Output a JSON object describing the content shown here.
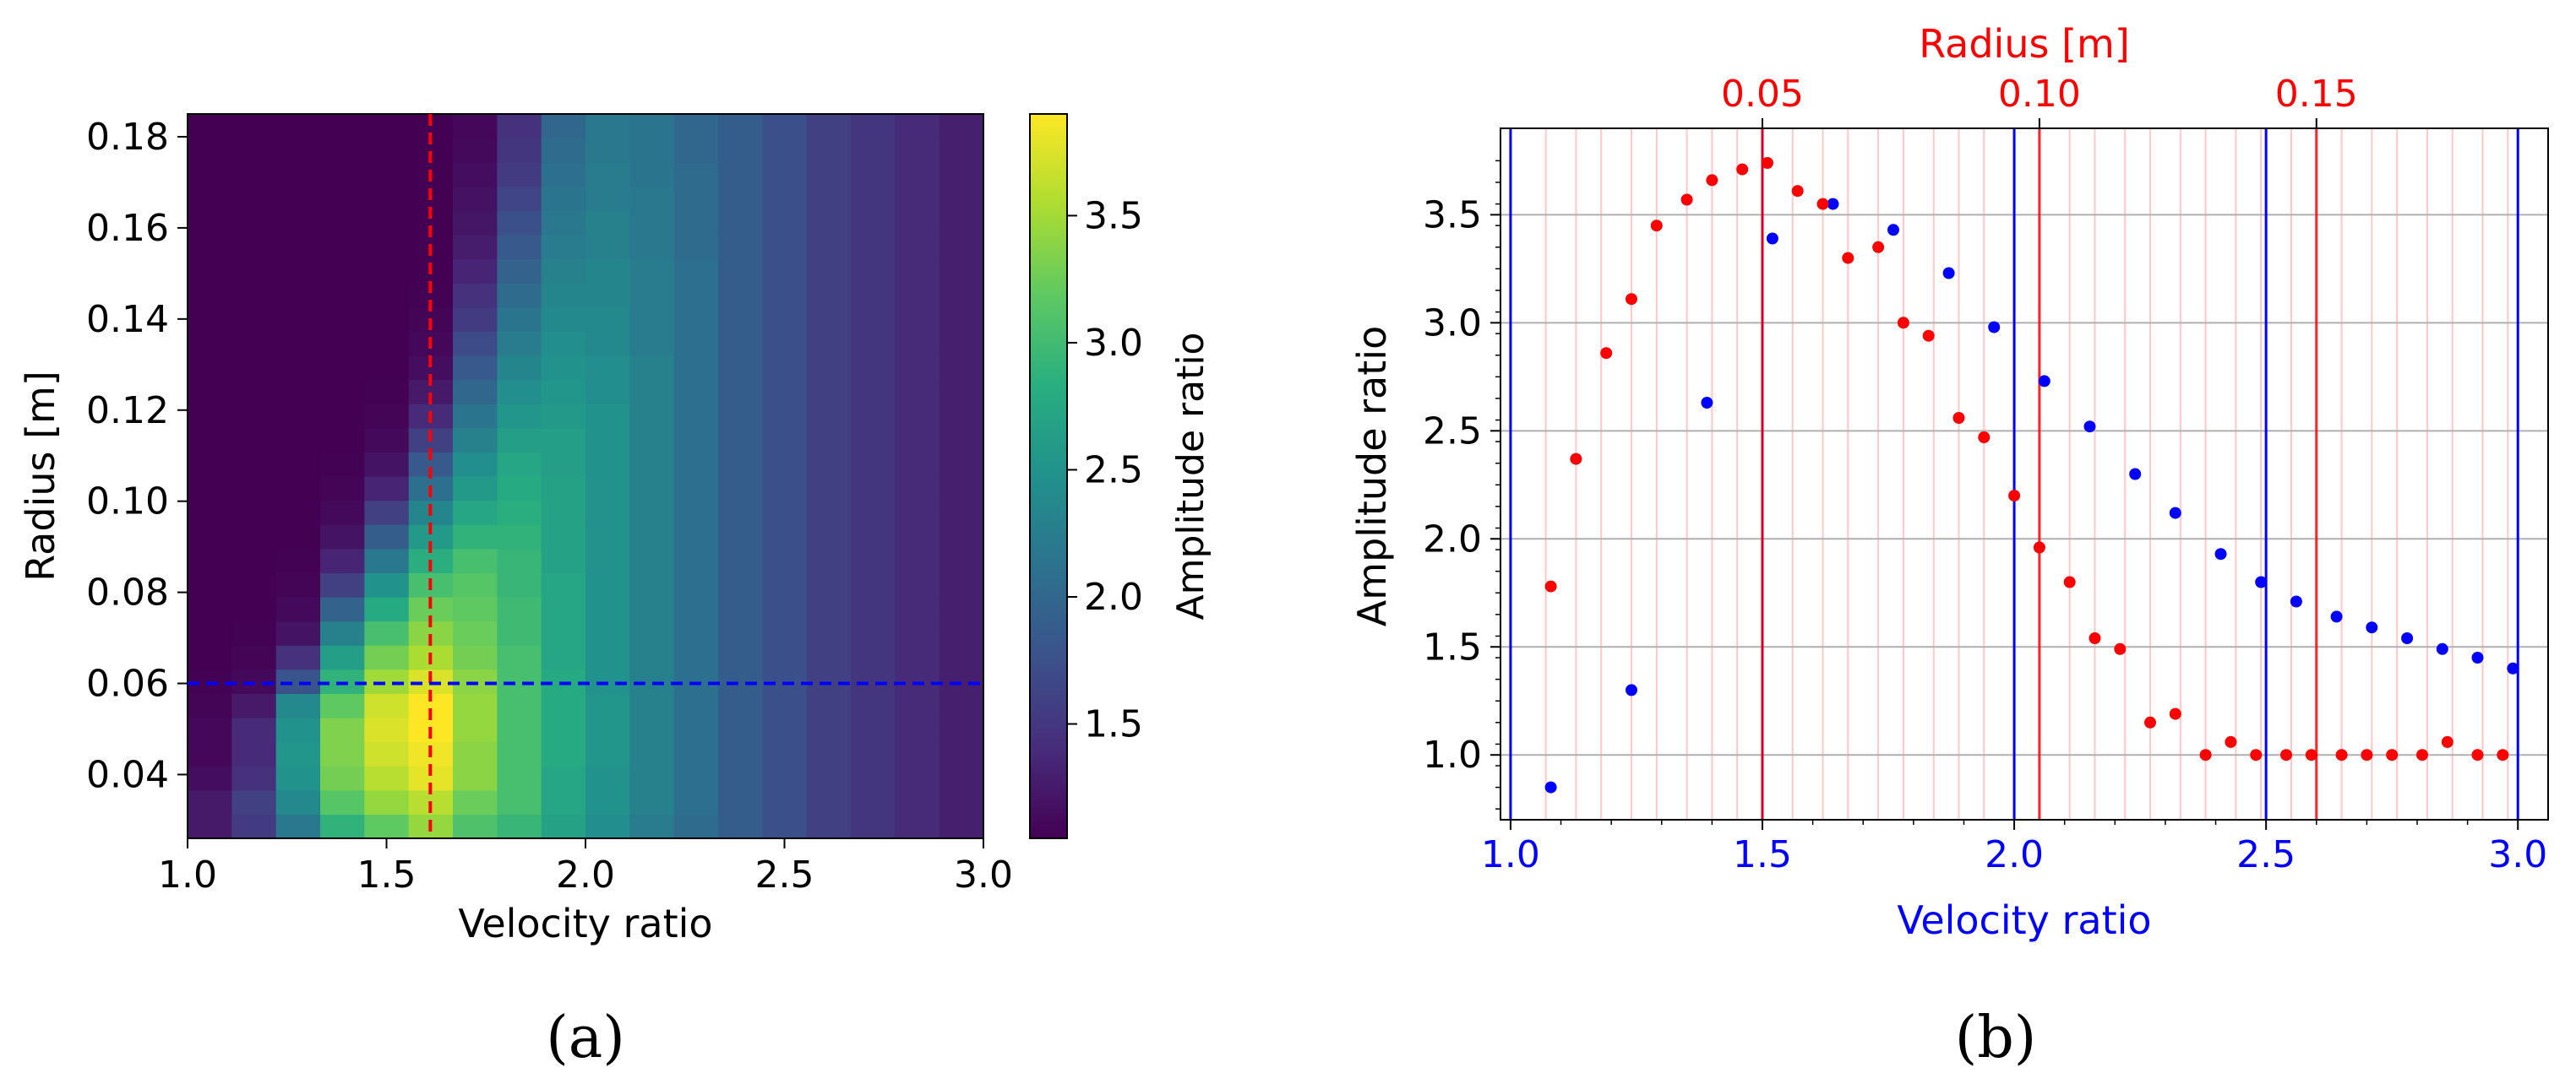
{
  "captions": {
    "a": "(a)",
    "b": "(b)"
  },
  "colors": {
    "blue_series": "#0000ff",
    "red_series": "#ff0000",
    "crosshair_v": "#ff0000",
    "crosshair_h": "#0000ff"
  },
  "chart_data": [
    {
      "panel": "a",
      "type": "heatmap",
      "xlabel": "Velocity ratio",
      "ylabel": "Radius [m]",
      "xlim": [
        1.0,
        3.0
      ],
      "ylim": [
        0.026,
        0.185
      ],
      "xticks": [
        1.0,
        1.5,
        2.0,
        2.5,
        3.0
      ],
      "xtick_labels": [
        "1.0",
        "1.5",
        "2.0",
        "2.5",
        "3.0"
      ],
      "yticks": [
        0.04,
        0.06,
        0.08,
        0.1,
        0.12,
        0.14,
        0.16,
        0.18
      ],
      "ytick_labels": [
        "0.04",
        "0.06",
        "0.08",
        "0.10",
        "0.12",
        "0.14",
        "0.16",
        "0.18"
      ],
      "colorbar": {
        "label": "Amplitude ratio",
        "range": [
          1.05,
          3.9
        ],
        "ticks": [
          1.5,
          2.0,
          2.5,
          3.0,
          3.5
        ],
        "tick_labels": [
          "1.5",
          "2.0",
          "2.5",
          "3.0",
          "3.5"
        ],
        "colormap": "viridis"
      },
      "x_centers": [
        1.056,
        1.167,
        1.278,
        1.389,
        1.5,
        1.611,
        1.722,
        1.833,
        1.944,
        2.056,
        2.167,
        2.278,
        2.389,
        2.5,
        2.611,
        2.722,
        2.833,
        2.944
      ],
      "y_centers": [
        0.031,
        0.036,
        0.041,
        0.047,
        0.052,
        0.057,
        0.062,
        0.068,
        0.073,
        0.078,
        0.083,
        0.088,
        0.094,
        0.099,
        0.104,
        0.109,
        0.114,
        0.12,
        0.125,
        0.13,
        0.135,
        0.14,
        0.146,
        0.151,
        0.156,
        0.161,
        0.166,
        0.172,
        0.177,
        0.182
      ],
      "values": [
        [
          1.25,
          1.55,
          2.2,
          2.9,
          3.2,
          3.45,
          3.1,
          2.95,
          2.7,
          2.45,
          2.25,
          2.05,
          1.9,
          1.75,
          1.6,
          1.5,
          1.4,
          1.3
        ],
        [
          1.25,
          1.6,
          2.4,
          3.15,
          3.45,
          3.6,
          3.25,
          3.05,
          2.75,
          2.5,
          2.3,
          2.1,
          1.9,
          1.75,
          1.6,
          1.5,
          1.4,
          1.3
        ],
        [
          1.15,
          1.45,
          2.5,
          3.3,
          3.6,
          3.8,
          3.4,
          3.05,
          2.75,
          2.5,
          2.3,
          2.1,
          1.9,
          1.75,
          1.6,
          1.5,
          1.4,
          1.3
        ],
        [
          1.1,
          1.4,
          2.55,
          3.35,
          3.7,
          3.85,
          3.4,
          3.05,
          2.8,
          2.55,
          2.3,
          2.1,
          1.9,
          1.75,
          1.6,
          1.5,
          1.4,
          1.3
        ],
        [
          1.1,
          1.4,
          2.5,
          3.35,
          3.75,
          3.9,
          3.45,
          3.05,
          2.8,
          2.55,
          2.3,
          2.1,
          1.9,
          1.75,
          1.6,
          1.5,
          1.4,
          1.3
        ],
        [
          1.08,
          1.25,
          2.4,
          3.2,
          3.7,
          3.9,
          3.45,
          3.05,
          2.8,
          2.55,
          2.3,
          2.1,
          1.9,
          1.75,
          1.6,
          1.5,
          1.4,
          1.3
        ],
        [
          1.06,
          1.12,
          1.8,
          2.9,
          3.5,
          3.75,
          3.4,
          3.05,
          2.8,
          2.5,
          2.3,
          2.1,
          1.9,
          1.75,
          1.6,
          1.5,
          1.4,
          1.3
        ],
        [
          1.05,
          1.08,
          1.45,
          2.65,
          3.3,
          3.55,
          3.3,
          3.05,
          2.75,
          2.5,
          2.3,
          2.1,
          1.9,
          1.75,
          1.6,
          1.5,
          1.4,
          1.3
        ],
        [
          1.05,
          1.06,
          1.2,
          2.3,
          3.05,
          3.4,
          3.25,
          3.0,
          2.75,
          2.5,
          2.3,
          2.1,
          1.9,
          1.75,
          1.6,
          1.5,
          1.4,
          1.3
        ],
        [
          1.05,
          1.05,
          1.12,
          1.95,
          2.8,
          3.25,
          3.2,
          3.0,
          2.75,
          2.5,
          2.3,
          2.1,
          1.9,
          1.75,
          1.6,
          1.5,
          1.4,
          1.3
        ],
        [
          1.05,
          1.05,
          1.08,
          1.6,
          2.5,
          3.05,
          3.15,
          2.95,
          2.75,
          2.5,
          2.3,
          2.1,
          1.9,
          1.75,
          1.6,
          1.5,
          1.4,
          1.3
        ],
        [
          1.05,
          1.05,
          1.06,
          1.35,
          2.2,
          2.85,
          3.05,
          2.95,
          2.7,
          2.5,
          2.3,
          2.1,
          1.9,
          1.75,
          1.6,
          1.5,
          1.4,
          1.3
        ],
        [
          1.05,
          1.05,
          1.05,
          1.2,
          1.9,
          2.6,
          2.9,
          2.9,
          2.7,
          2.5,
          2.3,
          2.1,
          1.9,
          1.75,
          1.6,
          1.5,
          1.4,
          1.3
        ],
        [
          1.05,
          1.05,
          1.05,
          1.12,
          1.6,
          2.35,
          2.75,
          2.85,
          2.7,
          2.5,
          2.3,
          2.1,
          1.9,
          1.75,
          1.6,
          1.5,
          1.4,
          1.3
        ],
        [
          1.05,
          1.05,
          1.05,
          1.08,
          1.35,
          2.1,
          2.6,
          2.8,
          2.7,
          2.5,
          2.3,
          2.1,
          1.9,
          1.75,
          1.6,
          1.5,
          1.4,
          1.3
        ],
        [
          1.05,
          1.05,
          1.05,
          1.06,
          1.2,
          1.85,
          2.45,
          2.75,
          2.65,
          2.5,
          2.3,
          2.1,
          1.9,
          1.75,
          1.6,
          1.5,
          1.4,
          1.3
        ],
        [
          1.05,
          1.05,
          1.05,
          1.05,
          1.12,
          1.6,
          2.3,
          2.65,
          2.65,
          2.5,
          2.3,
          2.1,
          1.9,
          1.75,
          1.6,
          1.5,
          1.4,
          1.3
        ],
        [
          1.05,
          1.05,
          1.05,
          1.05,
          1.08,
          1.4,
          2.15,
          2.55,
          2.6,
          2.5,
          2.3,
          2.1,
          1.9,
          1.75,
          1.6,
          1.5,
          1.4,
          1.3
        ],
        [
          1.05,
          1.05,
          1.05,
          1.05,
          1.06,
          1.25,
          2.0,
          2.45,
          2.55,
          2.45,
          2.3,
          2.1,
          1.9,
          1.75,
          1.6,
          1.5,
          1.4,
          1.3
        ],
        [
          1.05,
          1.05,
          1.05,
          1.05,
          1.05,
          1.15,
          1.85,
          2.35,
          2.5,
          2.45,
          2.3,
          2.1,
          1.9,
          1.75,
          1.6,
          1.5,
          1.4,
          1.3
        ],
        [
          1.05,
          1.05,
          1.05,
          1.05,
          1.05,
          1.1,
          1.7,
          2.25,
          2.45,
          2.4,
          2.25,
          2.1,
          1.9,
          1.75,
          1.6,
          1.5,
          1.4,
          1.3
        ],
        [
          1.05,
          1.05,
          1.05,
          1.05,
          1.05,
          1.08,
          1.55,
          2.15,
          2.4,
          2.4,
          2.25,
          2.1,
          1.9,
          1.75,
          1.6,
          1.5,
          1.4,
          1.3
        ],
        [
          1.05,
          1.05,
          1.05,
          1.05,
          1.05,
          1.06,
          1.45,
          2.05,
          2.35,
          2.35,
          2.25,
          2.1,
          1.9,
          1.75,
          1.6,
          1.5,
          1.4,
          1.3
        ],
        [
          1.05,
          1.05,
          1.05,
          1.05,
          1.05,
          1.05,
          1.35,
          1.95,
          2.3,
          2.35,
          2.25,
          2.1,
          1.9,
          1.75,
          1.6,
          1.5,
          1.4,
          1.3
        ],
        [
          1.05,
          1.05,
          1.05,
          1.05,
          1.05,
          1.05,
          1.28,
          1.85,
          2.25,
          2.3,
          2.2,
          2.05,
          1.9,
          1.75,
          1.6,
          1.5,
          1.4,
          1.3
        ],
        [
          1.05,
          1.05,
          1.05,
          1.05,
          1.05,
          1.05,
          1.22,
          1.75,
          2.2,
          2.3,
          2.2,
          2.05,
          1.9,
          1.75,
          1.6,
          1.5,
          1.4,
          1.3
        ],
        [
          1.05,
          1.05,
          1.05,
          1.05,
          1.05,
          1.05,
          1.18,
          1.65,
          2.15,
          2.25,
          2.2,
          2.05,
          1.9,
          1.75,
          1.6,
          1.5,
          1.4,
          1.3
        ],
        [
          1.05,
          1.05,
          1.05,
          1.05,
          1.05,
          1.05,
          1.15,
          1.55,
          2.1,
          2.25,
          2.15,
          2.05,
          1.9,
          1.75,
          1.6,
          1.5,
          1.4,
          1.3
        ],
        [
          1.05,
          1.05,
          1.05,
          1.05,
          1.05,
          1.05,
          1.12,
          1.5,
          2.05,
          2.2,
          2.15,
          2.0,
          1.9,
          1.75,
          1.6,
          1.5,
          1.4,
          1.3
        ],
        [
          1.05,
          1.05,
          1.05,
          1.05,
          1.05,
          1.05,
          1.1,
          1.45,
          2.0,
          2.2,
          2.15,
          2.0,
          1.9,
          1.75,
          1.6,
          1.5,
          1.4,
          1.3
        ]
      ],
      "crosshair": {
        "x": 1.61,
        "y": 0.06
      }
    },
    {
      "panel": "b",
      "type": "scatter",
      "xlabel": "Velocity ratio",
      "ylabel": "Amplitude ratio",
      "top_xlabel": "Radius [m]",
      "xlim": [
        0.98,
        3.06
      ],
      "ylim": [
        0.7,
        3.9
      ],
      "xticks": [
        1.0,
        1.5,
        2.0,
        2.5,
        3.0
      ],
      "xtick_labels": [
        "1.0",
        "1.5",
        "2.0",
        "2.5",
        "3.0"
      ],
      "yticks": [
        1.0,
        1.5,
        2.0,
        2.5,
        3.0,
        3.5
      ],
      "ytick_labels": [
        "1.0",
        "1.5",
        "2.0",
        "2.5",
        "3.0",
        "3.5"
      ],
      "top_axis": {
        "ticks": [
          0.05,
          0.1,
          0.15
        ],
        "tick_labels": [
          "0.05",
          "0.10",
          "0.15"
        ],
        "tick_positions_on_bottom_axis": [
          1.5,
          2.05,
          2.6
        ]
      },
      "blue_vlines": [
        1.0,
        1.5,
        2.0,
        2.5,
        3.0
      ],
      "red_vlines": [
        1.5,
        2.05,
        2.6
      ],
      "faint_red_vlines": [
        1.07,
        1.13,
        1.18,
        1.24,
        1.29,
        1.35,
        1.4,
        1.45,
        1.56,
        1.62,
        1.67,
        1.73,
        1.78,
        1.84,
        1.89,
        1.94,
        2.0,
        2.11,
        2.16,
        2.22,
        2.27,
        2.33,
        2.38,
        2.44,
        2.49,
        2.55,
        2.65,
        2.71,
        2.76,
        2.82,
        2.87,
        2.93,
        2.98
      ],
      "series": [
        {
          "name": "",
          "color": "#0000ff",
          "x": [
            1.08,
            1.24,
            1.39,
            1.52,
            1.64,
            1.76,
            1.87,
            1.96,
            2.06,
            2.15,
            2.24,
            2.32,
            2.41,
            2.49,
            2.56,
            2.64,
            2.71,
            2.78,
            2.85,
            2.92,
            2.99
          ],
          "y": [
            0.85,
            1.3,
            2.63,
            3.39,
            3.55,
            3.43,
            3.23,
            2.98,
            2.73,
            2.52,
            2.3,
            2.12,
            1.93,
            1.8,
            1.71,
            1.64,
            1.59,
            1.54,
            1.49,
            1.45,
            1.4
          ]
        },
        {
          "name": "",
          "color": "#ff0000",
          "x": [
            1.08,
            1.13,
            1.19,
            1.24,
            1.29,
            1.35,
            1.4,
            1.46,
            1.51,
            1.57,
            1.62,
            1.67,
            1.73,
            1.78,
            1.83,
            1.89,
            1.94,
            2.0,
            2.05,
            2.11,
            2.16,
            2.21,
            2.27,
            2.32,
            2.38,
            2.43,
            2.48,
            2.54,
            2.59,
            2.65,
            2.7,
            2.75,
            2.81,
            2.86,
            2.92,
            2.97
          ],
          "y": [
            1.78,
            2.37,
            2.86,
            3.11,
            3.45,
            3.57,
            3.66,
            3.71,
            3.74,
            3.61,
            3.55,
            3.3,
            3.35,
            3.0,
            2.94,
            2.56,
            2.47,
            2.2,
            1.96,
            1.8,
            1.54,
            1.49,
            1.15,
            1.19,
            1.0,
            1.06,
            1.0,
            1.0,
            1.0,
            1.0,
            1.0,
            1.0,
            1.0,
            1.06,
            1.0,
            1.0
          ]
        }
      ]
    }
  ]
}
